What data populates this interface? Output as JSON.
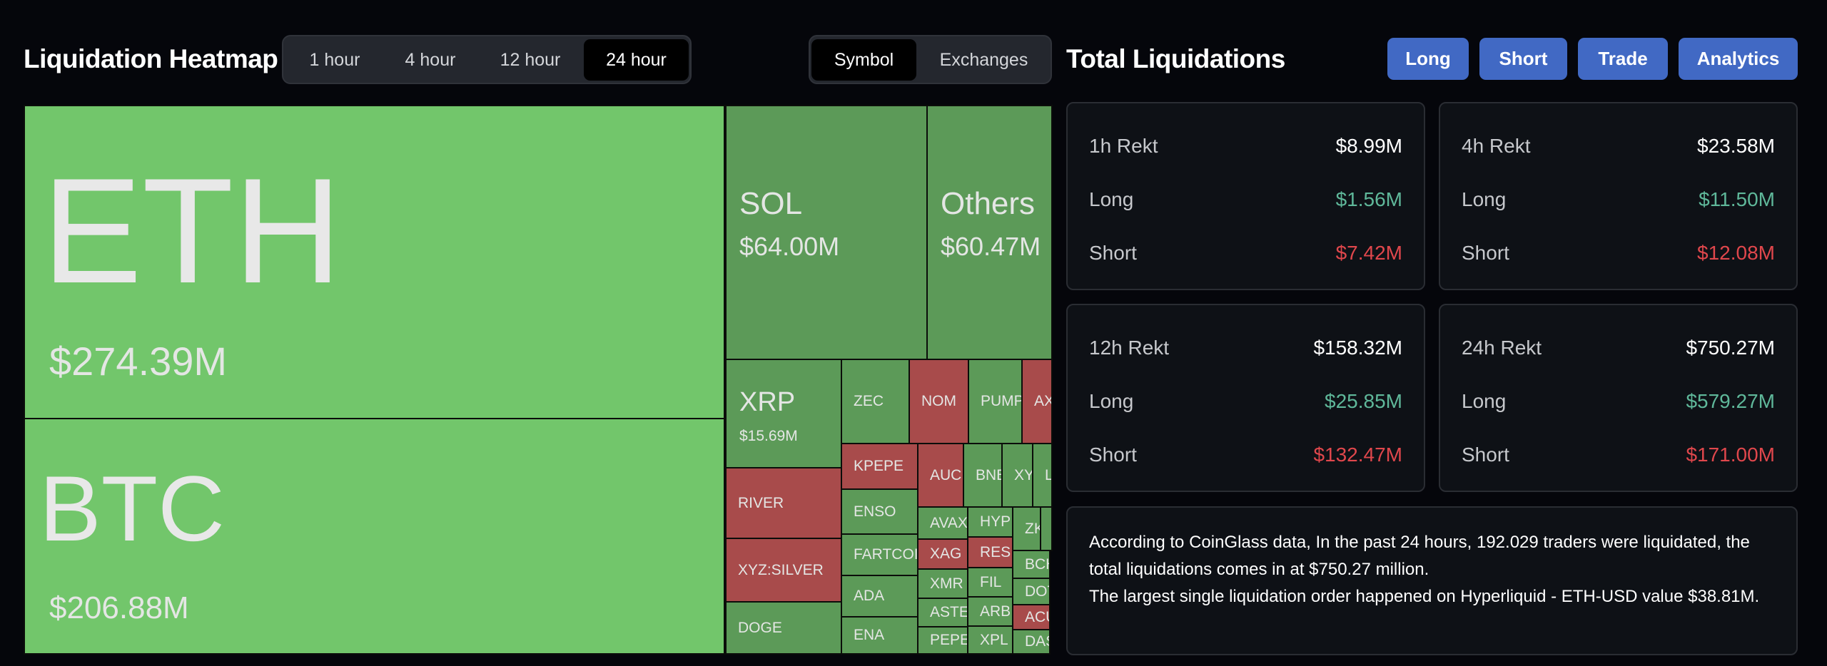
{
  "heatmap": {
    "title": "Liquidation Heatmap",
    "time_options": [
      "1 hour",
      "4 hour",
      "12 hour",
      "24 hour"
    ],
    "time_selected": "24 hour",
    "view_options": [
      "Symbol",
      "Exchanges"
    ],
    "view_selected": "Symbol",
    "colors": {
      "top": "#72c66b",
      "green": "#5c9a58",
      "red": "#a84b4b"
    },
    "tiles": [
      {
        "symbol": "ETH",
        "value": "$274.39M",
        "color": "top"
      },
      {
        "symbol": "BTC",
        "value": "$206.88M",
        "color": "top"
      },
      {
        "symbol": "SOL",
        "value": "$64.00M",
        "color": "green"
      },
      {
        "symbol": "Others",
        "value": "$60.47M",
        "color": "green"
      },
      {
        "symbol": "XRP",
        "value": "$15.69M",
        "color": "green"
      },
      {
        "symbol": "ZEC",
        "color": "green"
      },
      {
        "symbol": "NOM",
        "color": "red"
      },
      {
        "symbol": "PUMP",
        "color": "green"
      },
      {
        "symbol": "AX",
        "color": "red"
      },
      {
        "symbol": "RIVER",
        "color": "red"
      },
      {
        "symbol": "XYZ:SILVER",
        "color": "red"
      },
      {
        "symbol": "DOGE",
        "color": "green"
      },
      {
        "symbol": "KPEPE",
        "color": "red"
      },
      {
        "symbol": "ENSO",
        "color": "green"
      },
      {
        "symbol": "FARTCOIN",
        "color": "green"
      },
      {
        "symbol": "ADA",
        "color": "green"
      },
      {
        "symbol": "ENA",
        "color": "green"
      },
      {
        "symbol": "AUC",
        "color": "red"
      },
      {
        "symbol": "BNB",
        "color": "green"
      },
      {
        "symbol": "XY",
        "color": "green"
      },
      {
        "symbol": "L",
        "color": "green"
      },
      {
        "symbol": "AVAX",
        "color": "green"
      },
      {
        "symbol": "XAG",
        "color": "red"
      },
      {
        "symbol": "XMR",
        "color": "green"
      },
      {
        "symbol": "ASTE",
        "color": "green"
      },
      {
        "symbol": "PEPE",
        "color": "green"
      },
      {
        "symbol": "HYP",
        "color": "green"
      },
      {
        "symbol": "RES",
        "color": "red"
      },
      {
        "symbol": "FIL",
        "color": "green"
      },
      {
        "symbol": "ARB",
        "color": "green"
      },
      {
        "symbol": "XPL",
        "color": "green"
      },
      {
        "symbol": "ZK",
        "color": "green"
      },
      {
        "symbol": "",
        "color": "green"
      },
      {
        "symbol": "BCH",
        "color": "green"
      },
      {
        "symbol": "DOT",
        "color": "green"
      },
      {
        "symbol": "ACU",
        "color": "red"
      },
      {
        "symbol": "DAS",
        "color": "green"
      }
    ]
  },
  "total": {
    "title": "Total Liquidations",
    "buttons": [
      "Long",
      "Short",
      "Trade",
      "Analytics"
    ],
    "cards": [
      {
        "title": "1h Rekt",
        "total": "$8.99M",
        "long_label": "Long",
        "long": "$1.56M",
        "short_label": "Short",
        "short": "$7.42M"
      },
      {
        "title": "4h Rekt",
        "total": "$23.58M",
        "long_label": "Long",
        "long": "$11.50M",
        "short_label": "Short",
        "short": "$12.08M"
      },
      {
        "title": "12h Rekt",
        "total": "$158.32M",
        "long_label": "Long",
        "long": "$25.85M",
        "short_label": "Short",
        "short": "$132.47M"
      },
      {
        "title": "24h Rekt",
        "total": "$750.27M",
        "long_label": "Long",
        "long": "$579.27M",
        "short_label": "Short",
        "short": "$171.00M"
      }
    ],
    "summary": [
      "According to CoinGlass data, In the past 24 hours, 192.029 traders were liquidated, the total liquidations comes in at $750.27 million.",
      "The largest single liquidation order happened on Hyperliquid - ETH-USD value $38.81M."
    ],
    "colors": {
      "button": "#4169c4",
      "long": "#5fb89a",
      "short": "#e0474c"
    }
  }
}
